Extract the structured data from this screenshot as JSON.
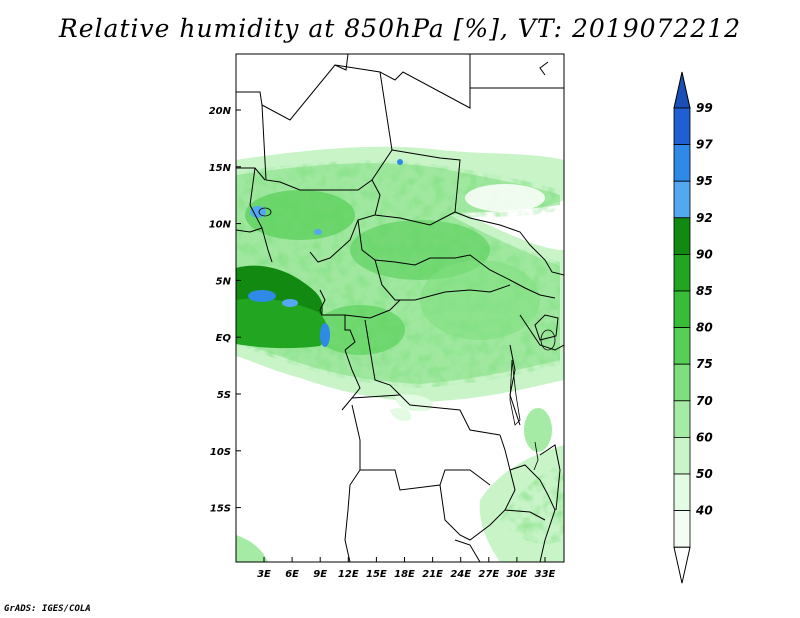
{
  "title": "Relative humidity at 850hPa [%], VT: 2019072212",
  "credit": "GrADS: IGES/COLA",
  "map": {
    "lat_labels": [
      "20N",
      "15N",
      "10N",
      "5N",
      "EQ",
      "5S",
      "10S",
      "15S"
    ],
    "lon_labels": [
      "3E",
      "6E",
      "9E",
      "12E",
      "15E",
      "18E",
      "21E",
      "24E",
      "27E",
      "30E",
      "33E"
    ],
    "lon_range": [
      0,
      35
    ],
    "lat_range": [
      -20,
      24.5
    ]
  },
  "colorbar": {
    "levels": [
      "99",
      "97",
      "95",
      "92",
      "90",
      "85",
      "80",
      "75",
      "70",
      "60",
      "50",
      "40"
    ],
    "colors": [
      "#1f5fd2",
      "#2e8ae6",
      "#54a8f2",
      "#128a12",
      "#22a622",
      "#38bd38",
      "#56cf56",
      "#7fdf7f",
      "#a5eba5",
      "#c8f4c8",
      "#e3fae3",
      "#f3fdf3"
    ],
    "top_color": "#1a4fb8",
    "bottom_color": "#ffffff"
  }
}
